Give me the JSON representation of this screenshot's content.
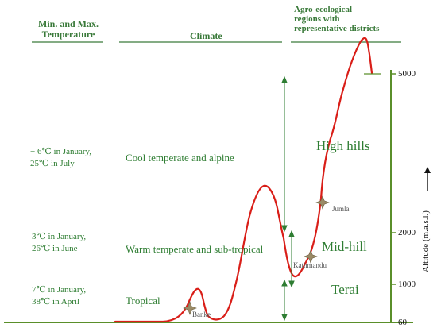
{
  "headers": {
    "temperature": [
      "Min. and Max.",
      "Temperature"
    ],
    "climate": "Climate",
    "regions": [
      "Agro-ecological",
      "regions with",
      "representative districts"
    ]
  },
  "temperatures": [
    {
      "lines": [
        "− 6℃ in January,",
        "25℃ in July"
      ]
    },
    {
      "lines": [
        "3℃ in January,",
        "26℃ in June"
      ]
    },
    {
      "lines": [
        "7℃ in January,",
        "38℃ in April"
      ]
    }
  ],
  "climates": [
    "Cool temperate and alpine",
    "Warm temperate and sub-tropical",
    "Tropical"
  ],
  "regions": [
    "High hills",
    "Mid-hill",
    "Terai"
  ],
  "districts": [
    "Jumla",
    "Kathmandu",
    "Banke"
  ],
  "axis": {
    "label": "Altitude (m.a.s.l.)",
    "ticks": [
      "5000",
      "2000",
      "1000",
      "60"
    ]
  },
  "colors": {
    "text_green": "#2e7d32",
    "header_green": "#3a7a3a",
    "profile_red": "#d91e18",
    "axis_green": "#5a8f2a",
    "marker": "#9b8b66"
  }
}
